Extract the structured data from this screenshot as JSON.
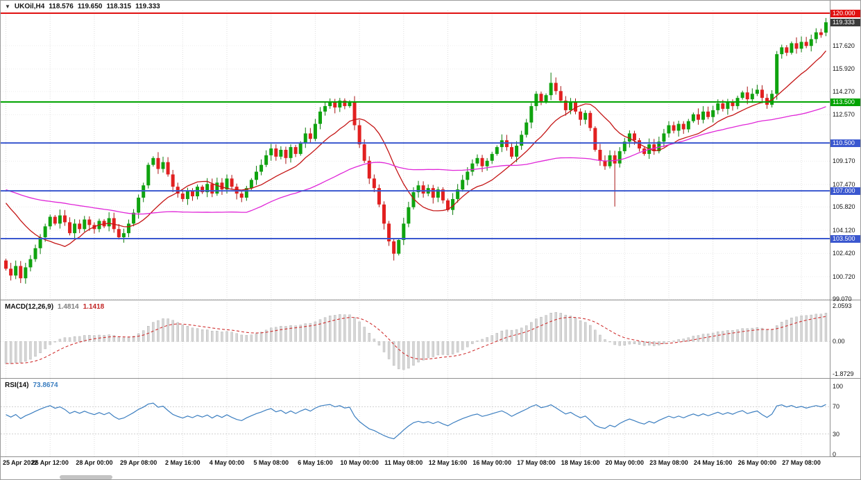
{
  "header": {
    "menu_icon": "▼",
    "symbol": "UKOil,H4",
    "open": "118.576",
    "high": "119.650",
    "low": "118.315",
    "close": "119.333"
  },
  "macd": {
    "title": "MACD(12,26,9)",
    "value_main": "1.4814",
    "value_signal": "1.1418",
    "scale_labels": [
      {
        "value": 2.0593,
        "label": "2.0593"
      },
      {
        "value": 0,
        "label": "0.00"
      },
      {
        "value": -1.8729,
        "label": "-1.8729"
      }
    ]
  },
  "rsi": {
    "title": "RSI(14)",
    "value": "73.8674",
    "scale_labels": [
      {
        "value": 100,
        "label": "100"
      },
      {
        "value": 70,
        "label": "70"
      },
      {
        "value": 30,
        "label": "30"
      },
      {
        "value": 0,
        "label": "0"
      }
    ],
    "levels": [
      70,
      30
    ]
  },
  "colors": {
    "bull": "#0fa30f",
    "bull_wick": "#0a7a0a",
    "bear": "#e22020",
    "bear_wick": "#a81414",
    "macd_hist": "#d6d6d6",
    "macd_hist_stroke": "#ababab",
    "macd_signal": "#d03030",
    "rsi": "#3b7ec0",
    "current_badge": "#3a3a3a"
  },
  "chart_data": {
    "type": "candlestick",
    "symbol": "UKOil",
    "timeframe": "H4",
    "bars_per_label": 9,
    "time_labels": [
      "25 Apr 2022",
      "26 Apr 12:00",
      "28 Apr 00:00",
      "29 Apr 08:00",
      "2 May 16:00",
      "4 May 00:00",
      "5 May 08:00",
      "6 May 16:00",
      "10 May 00:00",
      "11 May 08:00",
      "12 May 16:00",
      "16 May 00:00",
      "17 May 08:00",
      "18 May 16:00",
      "20 May 00:00",
      "23 May 08:00",
      "24 May 16:00",
      "26 May 00:00",
      "27 May 08:00"
    ],
    "price_axis_labels": [
      {
        "value": 117.62,
        "label": "117.620"
      },
      {
        "value": 115.92,
        "label": "115.920"
      },
      {
        "value": 114.27,
        "label": "114.270"
      },
      {
        "value": 112.57,
        "label": "112.570"
      },
      {
        "value": 109.17,
        "label": "109.170"
      },
      {
        "value": 107.47,
        "label": "107.470"
      },
      {
        "value": 105.82,
        "label": "105.820"
      },
      {
        "value": 104.12,
        "label": "104.120"
      },
      {
        "value": 102.42,
        "label": "102.420"
      },
      {
        "value": 100.72,
        "label": "100.720"
      },
      {
        "value": 99.07,
        "label": "99.070"
      }
    ],
    "levels": [
      {
        "price": 120.0,
        "label": "120.000",
        "color": "#e01010"
      },
      {
        "price": 113.5,
        "label": "113.500",
        "color": "#00a300"
      },
      {
        "price": 110.5,
        "label": "110.500",
        "color": "#3a57cf"
      },
      {
        "price": 107.0,
        "label": "107.000",
        "color": "#3a57cf"
      },
      {
        "price": 103.5,
        "label": "103.500",
        "color": "#3a57cf"
      }
    ],
    "current_price": 119.333,
    "current_price_label": "119.333",
    "ylim": [
      99.07,
      120.8
    ],
    "first_open": 101.9,
    "closes": [
      101.3,
      100.8,
      101.5,
      100.6,
      101.4,
      102.0,
      102.8,
      103.6,
      104.4,
      105.1,
      104.6,
      105.2,
      104.7,
      103.9,
      104.6,
      104.2,
      104.9,
      104.5,
      104.2,
      104.8,
      104.4,
      105.0,
      104.2,
      103.6,
      103.9,
      104.6,
      105.4,
      106.5,
      107.4,
      108.9,
      109.4,
      108.6,
      109.1,
      108.2,
      107.3,
      106.8,
      106.4,
      107.0,
      106.6,
      107.3,
      106.9,
      107.5,
      106.8,
      107.6,
      107.1,
      107.9,
      107.3,
      106.8,
      106.5,
      107.2,
      107.8,
      108.4,
      108.9,
      109.6,
      110.1,
      109.5,
      110.0,
      109.4,
      110.2,
      109.7,
      110.5,
      111.2,
      110.8,
      111.9,
      112.8,
      113.2,
      113.5,
      113.1,
      113.6,
      113.2,
      113.5,
      111.8,
      110.4,
      109.2,
      107.9,
      107.2,
      106.0,
      104.6,
      103.3,
      102.4,
      103.4,
      104.6,
      105.8,
      106.9,
      107.4,
      106.8,
      107.2,
      106.5,
      107.1,
      106.3,
      105.6,
      106.4,
      107.1,
      107.8,
      108.4,
      109.0,
      109.4,
      108.8,
      109.2,
      109.7,
      110.2,
      110.7,
      110.2,
      109.5,
      110.3,
      111.1,
      112.0,
      113.2,
      114.1,
      113.5,
      114.0,
      114.9,
      114.3,
      113.6,
      112.9,
      113.5,
      112.8,
      112.2,
      112.7,
      111.6,
      110.0,
      109.2,
      108.8,
      109.6,
      109.0,
      109.9,
      110.6,
      111.2,
      110.7,
      110.1,
      109.7,
      110.4,
      109.9,
      110.6,
      111.2,
      111.8,
      111.4,
      111.9,
      111.5,
      112.1,
      112.6,
      112.2,
      112.8,
      112.4,
      112.9,
      113.4,
      113.0,
      113.5,
      113.2,
      113.8,
      114.2,
      113.7,
      114.1,
      114.4,
      113.8,
      113.3,
      114.1,
      117.0,
      117.5,
      117.1,
      117.8,
      117.4,
      117.9,
      117.6,
      118.1,
      118.6,
      118.4,
      119.333
    ],
    "bar_overrides": {
      "3": {
        "low": 100.25
      },
      "79": {
        "low": 101.9
      },
      "111": {
        "high": 115.65
      },
      "124": {
        "low": 105.85
      },
      "167": {
        "open": 118.576,
        "high": 119.65,
        "low": 118.315,
        "close": 119.333
      }
    },
    "moving_averages": [
      {
        "name": "ma-fast-red",
        "type": "sma",
        "period": 13,
        "prehistory": 106.5,
        "color": "#c41414"
      },
      {
        "name": "ma-slow-magenta",
        "type": "sma",
        "period": 50,
        "prehistory": 107.2,
        "color": "#e026d8"
      }
    ],
    "macd_config": {
      "fast": 12,
      "slow": 26,
      "signal": 9,
      "seed_fast": 102.2,
      "seed_slow": 103.5
    },
    "rsi_config": {
      "period": 14,
      "seed_avg_gain": 0.35,
      "seed_avg_loss": 0.25
    }
  }
}
